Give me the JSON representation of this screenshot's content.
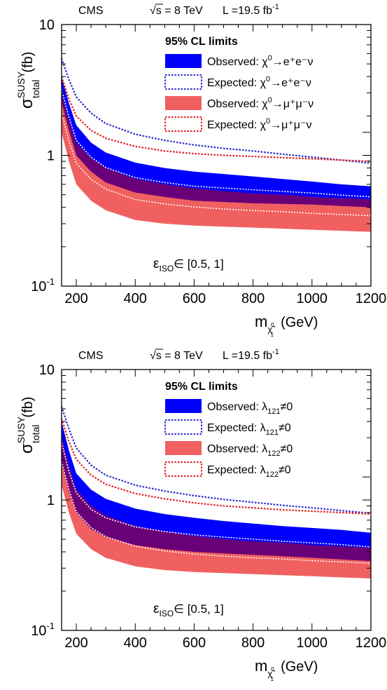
{
  "chart_data": [
    {
      "type": "area",
      "header": {
        "experiment": "CMS",
        "energy": "√s = 8 TeV",
        "lumi": "L =19.5 fb",
        "lumi_exp": "-1"
      },
      "ylabel": {
        "main": "σ",
        "sup": "SUSY",
        "sub": "total",
        "unit": "(fb)"
      },
      "xlabel": {
        "main": "m",
        "sub": "χ̃",
        "subsup": "0",
        "subsub": "1",
        "unit": "(GeV)"
      },
      "yscale": "log",
      "ylim": [
        0.1,
        10
      ],
      "xlim": [
        150,
        1200
      ],
      "y_ticks": [
        {
          "value": 10,
          "base": "10",
          "exp": ""
        },
        {
          "value": 1,
          "base": "1",
          "exp": ""
        },
        {
          "value": 0.1,
          "base": "10",
          "exp": "-1"
        }
      ],
      "x_ticks": [
        200,
        400,
        600,
        800,
        1000,
        1200
      ],
      "legend_title": "95% CL limits",
      "legend_placement": "top-right",
      "annotation": {
        "main": "ε",
        "sub": "ISO",
        "rest": "∈ [0.5, 1]"
      },
      "colors": {
        "electron": "#0000ff",
        "muon": "#f06060",
        "overlap": "#6a0078",
        "expected_electron": "#2a2ad0",
        "expected_muon": "#e02020"
      },
      "series": [
        {
          "name": "Observed: χ⁰→e⁺e⁻ν",
          "legend_prefix": "Observed: ",
          "legend_particle": "χ",
          "legend_sup": "0",
          "legend_rest": "→e⁺e⁻ν",
          "kind": "band",
          "color_key": "electron",
          "x": [
            150,
            175,
            200,
            250,
            300,
            400,
            500,
            600,
            700,
            800,
            900,
            1000,
            1100,
            1200
          ],
          "lower": [
            2.55,
            1.55,
            1.0,
            0.75,
            0.62,
            0.52,
            0.48,
            0.45,
            0.44,
            0.43,
            0.425,
            0.42,
            0.41,
            0.4
          ],
          "upper": [
            4.0,
            2.5,
            1.7,
            1.25,
            1.05,
            0.88,
            0.8,
            0.75,
            0.72,
            0.69,
            0.66,
            0.63,
            0.6,
            0.58
          ]
        },
        {
          "name": "Expected: χ⁰→e⁺e⁻ν",
          "legend_prefix": "Expected: ",
          "legend_particle": "χ",
          "legend_sup": "0",
          "legend_rest": "→e⁺e⁻ν",
          "kind": "line",
          "color_key": "expected_electron",
          "x": [
            150,
            175,
            200,
            250,
            300,
            400,
            500,
            600,
            700,
            800,
            900,
            1000,
            1100,
            1200
          ],
          "y": [
            5.5,
            3.8,
            2.8,
            2.1,
            1.75,
            1.45,
            1.3,
            1.2,
            1.13,
            1.08,
            1.02,
            0.97,
            0.92,
            0.87
          ]
        },
        {
          "name": "Observed: χ⁰→μ⁺μ⁻ν",
          "legend_prefix": "Observed: ",
          "legend_particle": "χ",
          "legend_sup": "0",
          "legend_rest": "→μ⁺μ⁻ν",
          "kind": "band",
          "color_key": "muon",
          "x": [
            150,
            175,
            200,
            250,
            300,
            400,
            500,
            600,
            700,
            800,
            900,
            1000,
            1100,
            1200
          ],
          "lower": [
            1.5,
            0.9,
            0.6,
            0.45,
            0.38,
            0.32,
            0.3,
            0.29,
            0.285,
            0.28,
            0.275,
            0.27,
            0.265,
            0.26
          ],
          "upper": [
            3.0,
            1.85,
            1.25,
            0.95,
            0.8,
            0.66,
            0.6,
            0.56,
            0.53,
            0.51,
            0.5,
            0.48,
            0.47,
            0.46
          ]
        },
        {
          "name": "Expected: χ⁰→μ⁺μ⁻ν",
          "legend_prefix": "Expected: ",
          "legend_particle": "χ",
          "legend_sup": "0",
          "legend_rest": "→μ⁺μ⁻ν",
          "kind": "line",
          "color_key": "expected_muon",
          "x": [
            150,
            175,
            200,
            250,
            300,
            400,
            500,
            600,
            700,
            800,
            900,
            1000,
            1100,
            1200
          ],
          "y": [
            4.0,
            2.7,
            2.0,
            1.55,
            1.35,
            1.17,
            1.08,
            1.03,
            1.0,
            0.98,
            0.96,
            0.94,
            0.92,
            0.9
          ]
        }
      ]
    },
    {
      "type": "area",
      "header": {
        "experiment": "CMS",
        "energy": "√s = 8 TeV",
        "lumi": "L =19.5 fb",
        "lumi_exp": "-1"
      },
      "ylabel": {
        "main": "σ",
        "sup": "SUSY",
        "sub": "total",
        "unit": "(fb)"
      },
      "xlabel": {
        "main": "m",
        "sub": "χ̃",
        "subsup": "0",
        "subsub": "1",
        "unit": "(GeV)"
      },
      "yscale": "log",
      "ylim": [
        0.1,
        10
      ],
      "xlim": [
        150,
        1200
      ],
      "y_ticks": [
        {
          "value": 10,
          "base": "10",
          "exp": ""
        },
        {
          "value": 1,
          "base": "1",
          "exp": ""
        },
        {
          "value": 0.1,
          "base": "10",
          "exp": "-1"
        }
      ],
      "x_ticks": [
        200,
        400,
        600,
        800,
        1000,
        1200
      ],
      "legend_title": "95% CL limits",
      "legend_placement": "top-right",
      "annotation": {
        "main": "ε",
        "sub": "ISO",
        "rest": "∈ [0.5, 1]"
      },
      "colors": {
        "electron": "#0000ff",
        "muon": "#f06060",
        "overlap": "#6a0078",
        "expected_electron": "#2a2ad0",
        "expected_muon": "#e02020"
      },
      "series": [
        {
          "name": "Observed: λ121≠0",
          "legend_prefix": "Observed: ",
          "legend_particle": "λ",
          "legend_sub": "121",
          "legend_rest": "≠0",
          "kind": "band",
          "color_key": "electron",
          "x": [
            150,
            175,
            200,
            250,
            300,
            400,
            500,
            600,
            700,
            800,
            900,
            1000,
            1100,
            1200
          ],
          "lower": [
            1.9,
            1.15,
            0.8,
            0.6,
            0.52,
            0.45,
            0.42,
            0.4,
            0.39,
            0.38,
            0.37,
            0.36,
            0.35,
            0.34
          ],
          "upper": [
            4.0,
            2.4,
            1.6,
            1.2,
            1.02,
            0.86,
            0.78,
            0.73,
            0.69,
            0.66,
            0.63,
            0.61,
            0.59,
            0.56
          ]
        },
        {
          "name": "Expected: λ121≠0",
          "legend_prefix": "Expected: ",
          "legend_particle": "λ",
          "legend_sub": "121",
          "legend_rest": "≠0",
          "kind": "line",
          "color_key": "expected_electron",
          "x": [
            150,
            175,
            200,
            250,
            300,
            400,
            500,
            600,
            700,
            800,
            900,
            1000,
            1100,
            1200
          ],
          "y": [
            5.2,
            3.5,
            2.5,
            1.85,
            1.55,
            1.3,
            1.17,
            1.08,
            1.01,
            0.96,
            0.91,
            0.87,
            0.83,
            0.79
          ]
        },
        {
          "name": "Observed: λ122≠0",
          "legend_prefix": "Observed: ",
          "legend_particle": "λ",
          "legend_sub": "122",
          "legend_rest": "≠0",
          "kind": "band",
          "color_key": "muon",
          "x": [
            150,
            175,
            200,
            250,
            300,
            400,
            500,
            600,
            700,
            800,
            900,
            1000,
            1100,
            1200
          ],
          "lower": [
            1.3,
            0.8,
            0.55,
            0.42,
            0.36,
            0.31,
            0.29,
            0.28,
            0.275,
            0.27,
            0.265,
            0.26,
            0.255,
            0.25
          ],
          "upper": [
            3.0,
            1.8,
            1.2,
            0.9,
            0.76,
            0.63,
            0.57,
            0.53,
            0.5,
            0.48,
            0.47,
            0.45,
            0.44,
            0.43
          ]
        },
        {
          "name": "Expected: λ122≠0",
          "legend_prefix": "Expected: ",
          "legend_particle": "λ",
          "legend_sub": "122",
          "legend_rest": "≠0",
          "kind": "line",
          "color_key": "expected_muon",
          "x": [
            150,
            175,
            200,
            250,
            300,
            400,
            500,
            600,
            700,
            800,
            900,
            1000,
            1100,
            1200
          ],
          "y": [
            4.2,
            2.8,
            2.05,
            1.55,
            1.32,
            1.12,
            1.02,
            0.95,
            0.9,
            0.87,
            0.84,
            0.82,
            0.8,
            0.78
          ]
        }
      ]
    }
  ]
}
